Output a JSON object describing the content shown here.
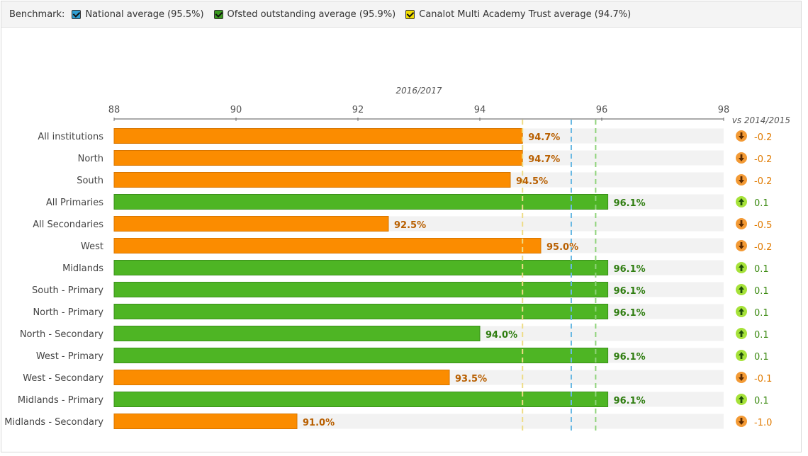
{
  "benchmark": {
    "label": "Benchmark:",
    "items": [
      {
        "label": "National average (95.5%)",
        "color": "#2f9fd3",
        "value": 95.5
      },
      {
        "label": "Ofsted outstanding average (95.9%)",
        "color": "#3a9a1e",
        "value": 95.9
      },
      {
        "label": "Canalot Multi Academy Trust average (94.7%)",
        "color": "#f2dd00",
        "value": 94.7
      }
    ]
  },
  "chart_data": {
    "type": "bar",
    "orientation": "horizontal",
    "subtitle": "2016/2017",
    "change_header": "vs 2014/2015",
    "xlim": [
      88,
      98
    ],
    "xticks": [
      "88",
      "90",
      "92",
      "94",
      "96",
      "98"
    ],
    "colors": {
      "above": "#4eb524",
      "above_text": "#2f7d10",
      "below": "#fb8c00",
      "below_text": "#b85f00",
      "track": "#f2f2f2",
      "up_icon": "#a6e23a",
      "down_icon": "#f39a35"
    },
    "rows": [
      {
        "category": "All institutions",
        "value": 94.7,
        "label": "94.7%",
        "change": "-0.2",
        "direction": "down"
      },
      {
        "category": "North",
        "value": 94.7,
        "label": "94.7%",
        "change": "-0.2",
        "direction": "down"
      },
      {
        "category": "South",
        "value": 94.5,
        "label": "94.5%",
        "change": "-0.2",
        "direction": "down"
      },
      {
        "category": "All Primaries",
        "value": 96.1,
        "label": "96.1%",
        "change": "0.1",
        "direction": "up"
      },
      {
        "category": "All Secondaries",
        "value": 92.5,
        "label": "92.5%",
        "change": "-0.5",
        "direction": "down"
      },
      {
        "category": "West",
        "value": 95.0,
        "label": "95.0%",
        "change": "-0.2",
        "direction": "down"
      },
      {
        "category": "Midlands",
        "value": 96.1,
        "label": "96.1%",
        "change": "0.1",
        "direction": "up"
      },
      {
        "category": "South - Primary",
        "value": 96.1,
        "label": "96.1%",
        "change": "0.1",
        "direction": "up"
      },
      {
        "category": "North - Primary",
        "value": 96.1,
        "label": "96.1%",
        "change": "0.1",
        "direction": "up"
      },
      {
        "category": "North - Secondary",
        "value": 94.0,
        "label": "94.0%",
        "change": "0.1",
        "direction": "up"
      },
      {
        "category": "West - Primary",
        "value": 96.1,
        "label": "96.1%",
        "change": "0.1",
        "direction": "up"
      },
      {
        "category": "West - Secondary",
        "value": 93.5,
        "label": "93.5%",
        "change": "-0.1",
        "direction": "down"
      },
      {
        "category": "Midlands - Primary",
        "value": 96.1,
        "label": "96.1%",
        "change": "0.1",
        "direction": "up"
      },
      {
        "category": "Midlands - Secondary",
        "value": 91.0,
        "label": "91.0%",
        "change": "-1.0",
        "direction": "down"
      }
    ]
  }
}
